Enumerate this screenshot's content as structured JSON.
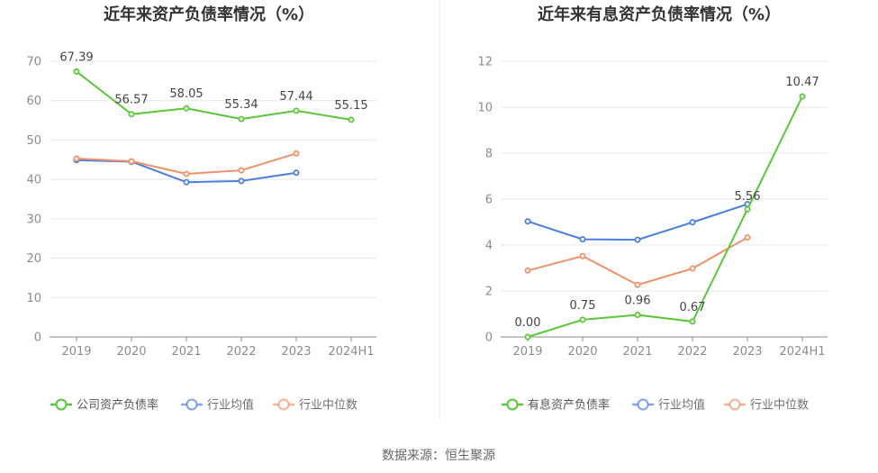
{
  "source_label": "数据来源：恒生聚源",
  "colors": {
    "green": "#5ac838",
    "blue": "#4a7fe0",
    "orange": "#f0916a",
    "grid": "#e5e7ef",
    "axis": "#888888"
  },
  "chart_data": [
    {
      "type": "line",
      "title": "近年来资产负债率情况（%）",
      "categories": [
        "2019",
        "2020",
        "2021",
        "2022",
        "2023",
        "2024H1"
      ],
      "ylim": [
        0,
        70
      ],
      "yticks": [
        0,
        10,
        20,
        30,
        40,
        50,
        60,
        70
      ],
      "series": [
        {
          "name": "公司资产负债率",
          "color": "green",
          "values": [
            67.39,
            56.57,
            58.05,
            55.34,
            57.44,
            55.15
          ],
          "labels": [
            "67.39",
            "56.57",
            "58.05",
            "55.34",
            "57.44",
            "55.15"
          ]
        },
        {
          "name": "行业均值",
          "color": "blue",
          "values": [
            44.9,
            44.5,
            39.3,
            39.6,
            41.7,
            null
          ],
          "labels": null
        },
        {
          "name": "行业中位数",
          "color": "orange",
          "values": [
            45.3,
            44.6,
            41.4,
            42.3,
            46.6,
            null
          ],
          "labels": null
        }
      ]
    },
    {
      "type": "line",
      "title": "近年来有息资产负债率情况（%）",
      "categories": [
        "2019",
        "2020",
        "2021",
        "2022",
        "2023",
        "2024H1"
      ],
      "ylim": [
        0,
        12
      ],
      "yticks": [
        0,
        2,
        4,
        6,
        8,
        10,
        12
      ],
      "series": [
        {
          "name": "有息资产负债率",
          "color": "green",
          "values": [
            0.0,
            0.75,
            0.96,
            0.67,
            5.56,
            10.47
          ],
          "labels": [
            "0.00",
            "0.75",
            "0.96",
            "0.67",
            "5.56",
            "10.47"
          ]
        },
        {
          "name": "行业均值",
          "color": "blue",
          "values": [
            5.03,
            4.25,
            4.23,
            4.99,
            5.78,
            null
          ],
          "labels": null
        },
        {
          "name": "行业中位数",
          "color": "orange",
          "values": [
            2.89,
            3.52,
            2.27,
            2.98,
            4.33,
            null
          ],
          "labels": null
        }
      ]
    }
  ]
}
